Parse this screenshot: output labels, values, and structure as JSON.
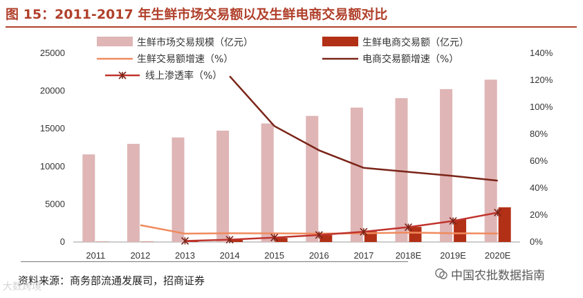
{
  "title": "图 15：2011-2017 年生鲜市场交易额以及生鲜电商交易额对比",
  "source": "资料来源：商务部流通发展司，招商证券",
  "watermark": "大数跨境",
  "wechat_account": "中国农批数据指南",
  "colors": {
    "title": "#b0402b",
    "market_bar": "#dfb5b5",
    "ecommerce_bar": "#b23016",
    "market_growth": "#f08a5d",
    "ecommerce_growth": "#7a2418",
    "penetration": "#c0332c"
  },
  "chart_data": {
    "type": "bar+line",
    "categories": [
      "2011",
      "2012",
      "2013",
      "2014",
      "2015",
      "2016",
      "2017",
      "2018E",
      "2019E",
      "2020E"
    ],
    "y_left": {
      "min": 0,
      "max": 25000,
      "ticks": [
        "0",
        "5000",
        "10000",
        "15000",
        "20000",
        "25000"
      ]
    },
    "y_right": {
      "min": 0,
      "max": 140,
      "ticks": [
        "0%",
        "20%",
        "40%",
        "60%",
        "80%",
        "100%",
        "120%",
        "140%"
      ]
    },
    "legend": {
      "market_bar": "生鲜市场交易规模（亿元）",
      "ecommerce_bar": "生鲜电商交易额（亿元）",
      "market_growth": "生鲜交易额增速（%）",
      "ecommerce_growth": "电商交易额增速（%）",
      "penetration": "线上渗透率（%）"
    },
    "series": [
      {
        "name": "生鲜市场交易规模（亿元）",
        "axis": "left",
        "kind": "bar",
        "values": [
          11600,
          13000,
          13850,
          14750,
          15700,
          16700,
          17800,
          19050,
          20250,
          21500
        ]
      },
      {
        "name": "生鲜电商交易额（亿元）",
        "axis": "left",
        "kind": "bar",
        "values": [
          30,
          40,
          130,
          290,
          540,
          910,
          1400,
          2000,
          3000,
          4600
        ]
      },
      {
        "name": "生鲜交易额增速（%）",
        "axis": "right",
        "kind": "line",
        "values": [
          null,
          12.5,
          6.2,
          6.5,
          6.4,
          6.2,
          6.5,
          7.0,
          6.5,
          6.3
        ]
      },
      {
        "name": "电商交易额增速（%）",
        "axis": "right",
        "kind": "line",
        "values": [
          null,
          null,
          null,
          123,
          86,
          68,
          55,
          52,
          49,
          45.5
        ]
      },
      {
        "name": "线上渗透率（%）",
        "axis": "right",
        "kind": "line_marker",
        "values": [
          null,
          null,
          0.8,
          1.7,
          3.3,
          5.2,
          7.6,
          11.0,
          15.6,
          21.8
        ]
      }
    ]
  }
}
